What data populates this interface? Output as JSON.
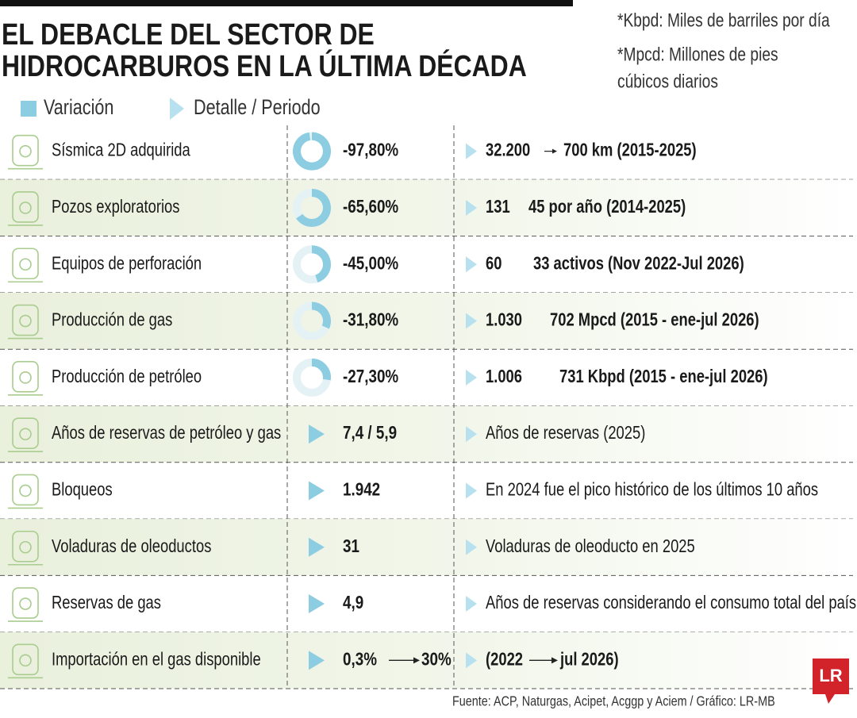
{
  "header": {
    "title_line1": "EL DEBACLE DEL SECTOR DE",
    "title_line2": "HIDROCARBUROS EN LA ÚLTIMA DÉCADA"
  },
  "notes": [
    "*Kbpd: Miles de barriles por día",
    "*Mpcd: Millones de pies",
    "cúbicos diarios"
  ],
  "legend": {
    "variation": "Variación",
    "detail": "Detalle / Periodo"
  },
  "rows": [
    {
      "label": "Sísmica 2D adquirida",
      "variation": "-97,80%",
      "variation_value": -97.8,
      "detail": "32.200",
      "detail_to": "700 km (2015-2025)"
    },
    {
      "label": "Pozos exploratorios",
      "variation": "-65,60%",
      "variation_value": -65.6,
      "detail": "131",
      "detail_to": "45 por año (2014-2025)"
    },
    {
      "label": "Equipos de perforación",
      "variation": "-45,00%",
      "variation_value": -45,
      "detail": "60",
      "detail_to": "33 activos (Nov 2022-Jul 2026)"
    },
    {
      "label": "Producción de gas",
      "variation": "-31,80%",
      "variation_value": -31.8,
      "detail": "1.030",
      "detail_to": "702 Mpcd (2015 - ene-jul 2026)"
    },
    {
      "label": "Producción de petróleo",
      "variation": "-27,30%",
      "variation_value": -27.3,
      "detail": "1.006",
      "detail_to": "731 Kbpd (2015 - ene-jul 2026)"
    },
    {
      "label": "Años de reservas de petróleo y gas",
      "variation": "7,4 / 5,9",
      "detail": "Años de reservas (2025)"
    },
    {
      "label": "Bloqueos",
      "variation": "1.942",
      "detail": "En 2024 fue el pico histórico de los últimos 10 años"
    },
    {
      "label": "Voladuras de oleoductos",
      "variation": "31",
      "detail": "Voladuras de oleoducto en 2025"
    },
    {
      "label": "Reservas de gas",
      "variation": "4,9",
      "detail": "Años de reservas considerando el consumo total del país"
    },
    {
      "label": "Importación en el gas disponible",
      "variation": "0,3%",
      "variation_to": "30%",
      "detail": "(2022",
      "detail_to": "jul 2026)"
    }
  ],
  "footer": "Fuente: ACP, Naturgas, Acipet, Acggp y Aciem / Gráfico: LR-MB",
  "logo": "LR"
}
